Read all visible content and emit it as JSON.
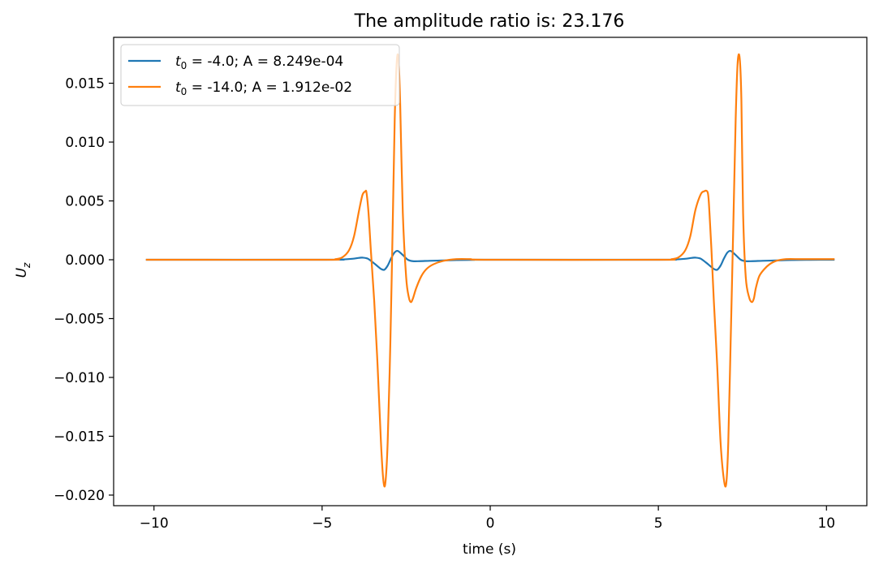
{
  "chart_data": {
    "type": "line",
    "title": "The amplitude ratio is: 23.176",
    "xlabel": "time (s)",
    "ylabel": "U_z",
    "ylabel_display": {
      "base": "U",
      "sub": "z"
    },
    "xlim": [
      -11.2,
      11.2
    ],
    "ylim": [
      -0.0209,
      0.0189
    ],
    "xticks": [
      -10,
      -5,
      0,
      5,
      10
    ],
    "xtick_labels": [
      "−10",
      "−5",
      "0",
      "5",
      "10"
    ],
    "yticks": [
      0.015,
      0.01,
      0.005,
      0.0,
      -0.005,
      -0.01,
      -0.015,
      -0.02
    ],
    "ytick_labels": [
      "0.015",
      "0.010",
      "0.005",
      "0.000",
      "−0.005",
      "−0.010",
      "−0.015",
      "−0.020"
    ],
    "grid": false,
    "legend_position": "top-left",
    "series": [
      {
        "name": "t_0 = -4.0; A = 8.249e-04",
        "legend_parts": {
          "var": "t",
          "sub": "0",
          "rest": " = -4.0; A = 8.249e-04"
        },
        "color": "#1f77b4",
        "x": [
          -10.24,
          -4.9,
          -4.4,
          -4.1,
          -3.9,
          -3.8,
          -3.65,
          -3.5,
          -3.35,
          -3.25,
          -3.15,
          -3.05,
          -2.95,
          -2.85,
          -2.75,
          -2.6,
          -2.45,
          -2.3,
          -2.1,
          -1.8,
          -1.4,
          -1.0,
          -0.5,
          0.0,
          5.0,
          5.5,
          5.8,
          6.0,
          6.1,
          6.25,
          6.4,
          6.55,
          6.65,
          6.75,
          6.85,
          6.95,
          7.05,
          7.15,
          7.3,
          7.45,
          7.6,
          7.8,
          8.1,
          8.5,
          8.9,
          9.5,
          10.24
        ],
        "y": [
          0.0,
          0.0,
          2e-05,
          8e-05,
          0.00016,
          0.00018,
          0.0001,
          -0.0002,
          -0.00055,
          -0.00078,
          -0.00085,
          -0.0005,
          0.0001,
          0.0006,
          0.00075,
          0.0004,
          0.0,
          -0.00012,
          -0.00012,
          -9e-05,
          -6e-05,
          -3e-05,
          -1e-05,
          0.0,
          0.0,
          2e-05,
          8e-05,
          0.00016,
          0.00018,
          0.0001,
          -0.0002,
          -0.00055,
          -0.00078,
          -0.00085,
          -0.0005,
          0.0001,
          0.0006,
          0.00075,
          0.0004,
          0.0,
          -0.00012,
          -0.00012,
          -9e-05,
          -6e-05,
          -3e-05,
          -1e-05,
          0.0
        ]
      },
      {
        "name": "t_0 = -14.0; A = 1.912e-02",
        "legend_parts": {
          "var": "t",
          "sub": "0",
          "rest": " = -14.0; A = 1.912e-02"
        },
        "color": "#ff7f0e",
        "x": [
          -10.24,
          -5.0,
          -4.6,
          -4.4,
          -4.2,
          -4.05,
          -3.9,
          -3.8,
          -3.72,
          -3.68,
          -3.62,
          -3.55,
          -3.45,
          -3.35,
          -3.25,
          -3.18,
          -3.12,
          -3.05,
          -2.97,
          -2.9,
          -2.84,
          -2.78,
          -2.73,
          -2.68,
          -2.6,
          -2.5,
          -2.42,
          -2.36,
          -2.3,
          -2.2,
          -2.05,
          -1.9,
          -1.7,
          -1.4,
          -1.0,
          -0.6,
          0.0,
          5.0,
          5.4,
          5.6,
          5.8,
          5.95,
          6.1,
          6.25,
          6.35,
          6.47,
          6.52,
          6.58,
          6.65,
          6.75,
          6.85,
          6.95,
          7.02,
          7.08,
          7.15,
          7.23,
          7.3,
          7.36,
          7.42,
          7.47,
          7.52,
          7.6,
          7.7,
          7.78,
          7.84,
          7.9,
          8.0,
          8.15,
          8.3,
          8.5,
          8.8,
          9.2,
          9.6,
          10.24
        ],
        "y": [
          0.0,
          0.0,
          5e-05,
          0.0002,
          0.0008,
          0.002,
          0.0042,
          0.0055,
          0.0058,
          0.0057,
          0.004,
          0.0008,
          -0.0035,
          -0.009,
          -0.0155,
          -0.0187,
          -0.019,
          -0.0155,
          -0.007,
          0.003,
          0.012,
          0.0168,
          0.0171,
          0.0135,
          0.004,
          -0.0015,
          -0.0032,
          -0.0036,
          -0.0033,
          -0.0024,
          -0.0014,
          -0.0008,
          -0.0004,
          -0.0001,
          5e-05,
          5e-05,
          0.0,
          0.0,
          5e-05,
          0.0002,
          0.0008,
          0.002,
          0.0042,
          0.0055,
          0.0058,
          0.0057,
          0.004,
          0.0008,
          -0.0035,
          -0.009,
          -0.0155,
          -0.0187,
          -0.019,
          -0.0155,
          -0.007,
          0.003,
          0.012,
          0.0168,
          0.0171,
          0.0135,
          0.004,
          -0.0015,
          -0.0032,
          -0.0036,
          -0.0033,
          -0.0024,
          -0.0014,
          -0.0008,
          -0.0004,
          -0.0001,
          5e-05,
          5e-05,
          5e-05,
          5e-05
        ]
      }
    ]
  }
}
